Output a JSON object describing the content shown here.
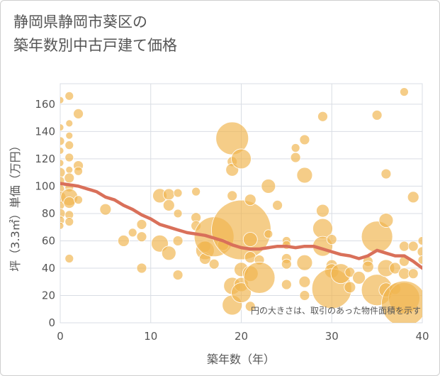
{
  "chart_data": {
    "type": "scatter",
    "title_line1": "静岡県静岡市葵区の",
    "title_line2": "築年数別中古戸建て価格",
    "xlabel": "築年数（年）",
    "ylabel": "坪（3.3㎡）単価（万円）",
    "xlim": [
      0,
      40
    ],
    "ylim": [
      0,
      175
    ],
    "xticks": [
      0,
      10,
      20,
      30,
      40
    ],
    "yticks": [
      0,
      20,
      40,
      60,
      80,
      100,
      120,
      140,
      160
    ],
    "note": "円の大きさは、取引のあった物件面積を示す",
    "colors": {
      "bubble": "#f0b550",
      "line": "#d9705a",
      "grid": "#d9dde4"
    },
    "trend": {
      "name": "平均",
      "x": [
        0,
        1,
        2,
        3,
        4,
        5,
        6,
        7,
        8,
        9,
        10,
        11,
        12,
        13,
        14,
        15,
        16,
        17,
        18,
        19,
        20,
        21,
        22,
        23,
        24,
        25,
        26,
        27,
        28,
        29,
        30,
        31,
        32,
        33,
        34,
        35,
        36,
        37,
        38,
        39,
        40
      ],
      "y": [
        102,
        101,
        100,
        98,
        96,
        92,
        90,
        86,
        83,
        79,
        76,
        72,
        70,
        68,
        66,
        65,
        64,
        62,
        60,
        57,
        55,
        54,
        54,
        55,
        56,
        56,
        55,
        56,
        56,
        54,
        52,
        50,
        49,
        47,
        49,
        53,
        51,
        49,
        49,
        45,
        40
      ]
    },
    "bubbles": [
      {
        "x": 0,
        "y": 163,
        "r": 5
      },
      {
        "x": 0,
        "y": 143,
        "r": 5
      },
      {
        "x": 0,
        "y": 133,
        "r": 6
      },
      {
        "x": 0,
        "y": 126,
        "r": 5
      },
      {
        "x": 0,
        "y": 117,
        "r": 5
      },
      {
        "x": 0,
        "y": 110,
        "r": 7
      },
      {
        "x": 0,
        "y": 104,
        "r": 6
      },
      {
        "x": 0,
        "y": 98,
        "r": 6
      },
      {
        "x": 0,
        "y": 92,
        "r": 8
      },
      {
        "x": 0,
        "y": 86,
        "r": 6
      },
      {
        "x": 0,
        "y": 80,
        "r": 7
      },
      {
        "x": 0,
        "y": 75,
        "r": 6
      },
      {
        "x": 0,
        "y": 71,
        "r": 5
      },
      {
        "x": 1,
        "y": 166,
        "r": 6
      },
      {
        "x": 1,
        "y": 146,
        "r": 5
      },
      {
        "x": 1,
        "y": 137,
        "r": 5
      },
      {
        "x": 1,
        "y": 130,
        "r": 6
      },
      {
        "x": 1,
        "y": 121,
        "r": 6
      },
      {
        "x": 1,
        "y": 112,
        "r": 5
      },
      {
        "x": 1,
        "y": 106,
        "r": 7
      },
      {
        "x": 1,
        "y": 99,
        "r": 6
      },
      {
        "x": 1,
        "y": 92,
        "r": 12
      },
      {
        "x": 1,
        "y": 88,
        "r": 8
      },
      {
        "x": 1,
        "y": 79,
        "r": 6
      },
      {
        "x": 1,
        "y": 74,
        "r": 6
      },
      {
        "x": 1,
        "y": 47,
        "r": 6
      },
      {
        "x": 2,
        "y": 153,
        "r": 7
      },
      {
        "x": 2,
        "y": 115,
        "r": 7
      },
      {
        "x": 2,
        "y": 111,
        "r": 6
      },
      {
        "x": 2,
        "y": 90,
        "r": 6
      },
      {
        "x": 5,
        "y": 83,
        "r": 8
      },
      {
        "x": 7,
        "y": 60,
        "r": 8
      },
      {
        "x": 8,
        "y": 66,
        "r": 6
      },
      {
        "x": 9,
        "y": 72,
        "r": 7
      },
      {
        "x": 9,
        "y": 63,
        "r": 7
      },
      {
        "x": 9,
        "y": 40,
        "r": 7
      },
      {
        "x": 11,
        "y": 93,
        "r": 10
      },
      {
        "x": 12,
        "y": 94,
        "r": 8
      },
      {
        "x": 12,
        "y": 86,
        "r": 8
      },
      {
        "x": 11,
        "y": 58,
        "r": 12
      },
      {
        "x": 12,
        "y": 51,
        "r": 10
      },
      {
        "x": 13,
        "y": 95,
        "r": 6
      },
      {
        "x": 13,
        "y": 80,
        "r": 6
      },
      {
        "x": 13,
        "y": 60,
        "r": 7
      },
      {
        "x": 13,
        "y": 35,
        "r": 7
      },
      {
        "x": 15,
        "y": 96,
        "r": 6
      },
      {
        "x": 15,
        "y": 77,
        "r": 7
      },
      {
        "x": 15,
        "y": 71,
        "r": 7
      },
      {
        "x": 16,
        "y": 56,
        "r": 8
      },
      {
        "x": 16,
        "y": 53,
        "r": 13
      },
      {
        "x": 16,
        "y": 47,
        "r": 8
      },
      {
        "x": 17,
        "y": 63,
        "r": 28
      },
      {
        "x": 17,
        "y": 43,
        "r": 7
      },
      {
        "x": 18,
        "y": 57,
        "r": 8
      },
      {
        "x": 19,
        "y": 135,
        "r": 23
      },
      {
        "x": 19,
        "y": 118,
        "r": 7
      },
      {
        "x": 19,
        "y": 112,
        "r": 9
      },
      {
        "x": 19,
        "y": 93,
        "r": 7
      },
      {
        "x": 19,
        "y": 27,
        "r": 12
      },
      {
        "x": 19,
        "y": 13,
        "r": 14
      },
      {
        "x": 20,
        "y": 120,
        "r": 14
      },
      {
        "x": 20,
        "y": 68,
        "r": 42
      },
      {
        "x": 20,
        "y": 39,
        "r": 10
      },
      {
        "x": 20,
        "y": 28,
        "r": 10
      },
      {
        "x": 20,
        "y": 22,
        "r": 14
      },
      {
        "x": 21,
        "y": 90,
        "r": 8
      },
      {
        "x": 21,
        "y": 61,
        "r": 10
      },
      {
        "x": 21,
        "y": 48,
        "r": 8
      },
      {
        "x": 21,
        "y": 36,
        "r": 11
      },
      {
        "x": 21,
        "y": 12,
        "r": 7
      },
      {
        "x": 22,
        "y": 46,
        "r": 7
      },
      {
        "x": 22,
        "y": 33,
        "r": 22
      },
      {
        "x": 23,
        "y": 100,
        "r": 10
      },
      {
        "x": 23,
        "y": 65,
        "r": 6
      },
      {
        "x": 24,
        "y": 86,
        "r": 7
      },
      {
        "x": 25,
        "y": 60,
        "r": 6
      },
      {
        "x": 25,
        "y": 57,
        "r": 6
      },
      {
        "x": 25,
        "y": 47,
        "r": 7
      },
      {
        "x": 25,
        "y": 43,
        "r": 7
      },
      {
        "x": 25,
        "y": 28,
        "r": 7
      },
      {
        "x": 26,
        "y": 128,
        "r": 6
      },
      {
        "x": 26,
        "y": 121,
        "r": 7
      },
      {
        "x": 27,
        "y": 134,
        "r": 7
      },
      {
        "x": 27,
        "y": 108,
        "r": 11
      },
      {
        "x": 27,
        "y": 44,
        "r": 11
      },
      {
        "x": 27,
        "y": 30,
        "r": 8
      },
      {
        "x": 27,
        "y": 20,
        "r": 7
      },
      {
        "x": 29,
        "y": 151,
        "r": 7
      },
      {
        "x": 29,
        "y": 82,
        "r": 9
      },
      {
        "x": 29,
        "y": 69,
        "r": 14
      },
      {
        "x": 29,
        "y": 56,
        "r": 14
      },
      {
        "x": 30,
        "y": 61,
        "r": 7
      },
      {
        "x": 30,
        "y": 42,
        "r": 8
      },
      {
        "x": 30,
        "y": 38,
        "r": 10
      },
      {
        "x": 30,
        "y": 25,
        "r": 28
      },
      {
        "x": 31,
        "y": 36,
        "r": 14
      },
      {
        "x": 32,
        "y": 37,
        "r": 7
      },
      {
        "x": 32,
        "y": 26,
        "r": 8
      },
      {
        "x": 33,
        "y": 33,
        "r": 9
      },
      {
        "x": 34,
        "y": 45,
        "r": 7
      },
      {
        "x": 34,
        "y": 41,
        "r": 8
      },
      {
        "x": 35,
        "y": 152,
        "r": 7
      },
      {
        "x": 35,
        "y": 63,
        "r": 22
      },
      {
        "x": 35,
        "y": 24,
        "r": 22
      },
      {
        "x": 36,
        "y": 109,
        "r": 7
      },
      {
        "x": 36,
        "y": 75,
        "r": 10
      },
      {
        "x": 36,
        "y": 40,
        "r": 12
      },
      {
        "x": 36,
        "y": 24,
        "r": 10
      },
      {
        "x": 37,
        "y": 40,
        "r": 8
      },
      {
        "x": 37,
        "y": 25,
        "r": 8
      },
      {
        "x": 38,
        "y": 169,
        "r": 6
      },
      {
        "x": 38,
        "y": 56,
        "r": 7
      },
      {
        "x": 38,
        "y": 45,
        "r": 7
      },
      {
        "x": 38,
        "y": 36,
        "r": 8
      },
      {
        "x": 38,
        "y": 18,
        "r": 22
      },
      {
        "x": 38,
        "y": 14,
        "r": 32
      },
      {
        "x": 39,
        "y": 92,
        "r": 8
      },
      {
        "x": 39,
        "y": 56,
        "r": 7
      },
      {
        "x": 39,
        "y": 36,
        "r": 7
      },
      {
        "x": 40,
        "y": 60,
        "r": 6
      },
      {
        "x": 40,
        "y": 52,
        "r": 7
      },
      {
        "x": 40,
        "y": 46,
        "r": 6
      }
    ]
  }
}
